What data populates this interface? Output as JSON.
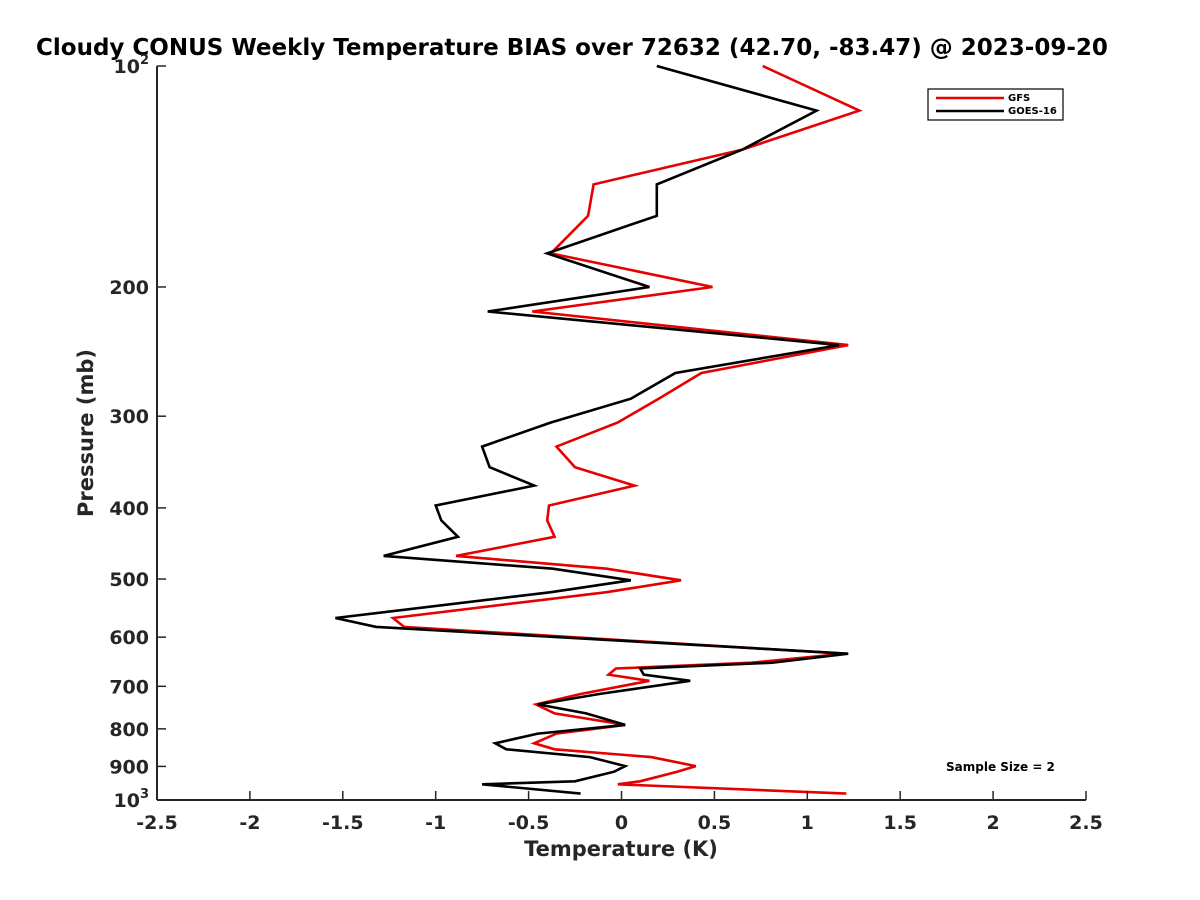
{
  "chart_data": {
    "type": "line",
    "title": "Cloudy CONUS Weekly Temperature BIAS over 72632 (42.70, -83.47) @ 2023-09-20",
    "xlabel": "Temperature (K)",
    "ylabel": "Pressure (mb)",
    "xlim": [
      -2.5,
      2.5
    ],
    "ylim": [
      100,
      1000
    ],
    "y_scale": "log",
    "y_reversed": true,
    "grid": false,
    "x_ticks": [
      -2.5,
      -2,
      -1.5,
      -1,
      -0.5,
      0,
      0.5,
      1,
      1.5,
      2,
      2.5
    ],
    "x_tick_labels": [
      "-2.5",
      "-2",
      "-1.5",
      "-1",
      "-0.5",
      "0",
      "0.5",
      "1",
      "1.5",
      "2",
      "2.5"
    ],
    "y_ticks": [
      100,
      200,
      300,
      400,
      500,
      600,
      700,
      800,
      900,
      1000
    ],
    "y_tick_labels": [
      {
        "base": "10",
        "exp": "2"
      },
      {
        "base": "200",
        "exp": ""
      },
      {
        "base": "300",
        "exp": ""
      },
      {
        "base": "400",
        "exp": ""
      },
      {
        "base": "500",
        "exp": ""
      },
      {
        "base": "600",
        "exp": ""
      },
      {
        "base": "700",
        "exp": ""
      },
      {
        "base": "800",
        "exp": ""
      },
      {
        "base": "900",
        "exp": ""
      },
      {
        "base": "10",
        "exp": "3"
      }
    ],
    "legend_position": "top-right",
    "series": [
      {
        "name": "GFS",
        "color": "#e60000",
        "points": [
          [
            0.76,
            100
          ],
          [
            1.28,
            115
          ],
          [
            0.65,
            130
          ],
          [
            -0.15,
            145
          ],
          [
            -0.18,
            160
          ],
          [
            -0.38,
            180
          ],
          [
            0.49,
            200
          ],
          [
            -0.48,
            216
          ],
          [
            1.22,
            240
          ],
          [
            0.43,
            262
          ],
          [
            0.2,
            284
          ],
          [
            -0.02,
            306
          ],
          [
            -0.35,
            330
          ],
          [
            -0.25,
            352
          ],
          [
            0.07,
            373
          ],
          [
            -0.39,
            397
          ],
          [
            -0.4,
            416
          ],
          [
            -0.36,
            438
          ],
          [
            -0.89,
            465
          ],
          [
            -0.08,
            484
          ],
          [
            0.32,
            502
          ],
          [
            -0.08,
            521
          ],
          [
            -1.23,
            565
          ],
          [
            -1.17,
            581
          ],
          [
            0.7,
            621
          ],
          [
            1.2,
            632
          ],
          [
            0.7,
            650
          ],
          [
            -0.03,
            662
          ],
          [
            -0.07,
            675
          ],
          [
            0.15,
            688
          ],
          [
            -0.22,
            717
          ],
          [
            -0.46,
            741
          ],
          [
            -0.36,
            762
          ],
          [
            0.02,
            790
          ],
          [
            -0.35,
            812
          ],
          [
            -0.47,
            837
          ],
          [
            -0.36,
            853
          ],
          [
            0.16,
            874
          ],
          [
            0.4,
            899
          ],
          [
            0.3,
            915
          ],
          [
            0.1,
            943
          ],
          [
            -0.02,
            952
          ],
          [
            1.21,
            980
          ]
        ]
      },
      {
        "name": "GOES-16",
        "color": "#000000",
        "points": [
          [
            0.19,
            100
          ],
          [
            1.05,
            115
          ],
          [
            0.65,
            130
          ],
          [
            0.19,
            145
          ],
          [
            0.19,
            160
          ],
          [
            -0.4,
            180
          ],
          [
            0.15,
            200
          ],
          [
            -0.72,
            216
          ],
          [
            1.17,
            240
          ],
          [
            0.29,
            262
          ],
          [
            0.05,
            284
          ],
          [
            -0.38,
            306
          ],
          [
            -0.75,
            330
          ],
          [
            -0.71,
            352
          ],
          [
            -0.47,
            373
          ],
          [
            -1.0,
            397
          ],
          [
            -0.97,
            416
          ],
          [
            -0.88,
            438
          ],
          [
            -1.28,
            465
          ],
          [
            -0.37,
            484
          ],
          [
            0.05,
            502
          ],
          [
            -0.38,
            521
          ],
          [
            -1.54,
            565
          ],
          [
            -1.32,
            581
          ],
          [
            0.7,
            621
          ],
          [
            1.22,
            632
          ],
          [
            0.81,
            650
          ],
          [
            0.1,
            662
          ],
          [
            0.12,
            675
          ],
          [
            0.37,
            688
          ],
          [
            -0.12,
            717
          ],
          [
            -0.45,
            741
          ],
          [
            -0.19,
            762
          ],
          [
            0.02,
            790
          ],
          [
            -0.45,
            812
          ],
          [
            -0.68,
            837
          ],
          [
            -0.62,
            853
          ],
          [
            -0.17,
            874
          ],
          [
            0.02,
            899
          ],
          [
            -0.04,
            915
          ],
          [
            -0.25,
            943
          ],
          [
            -0.75,
            952
          ],
          [
            -0.22,
            980
          ]
        ]
      }
    ],
    "annotation": "Sample Size = 2"
  }
}
